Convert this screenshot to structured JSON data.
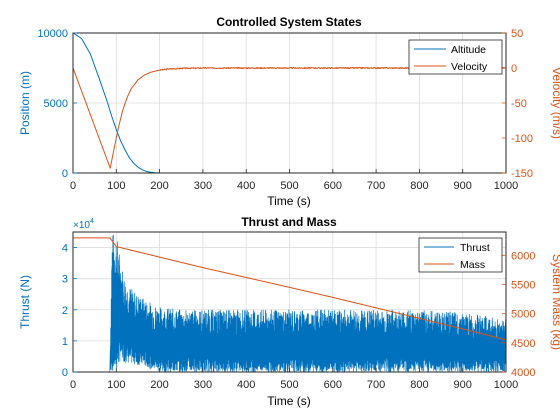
{
  "chart_data": [
    {
      "type": "line",
      "title": "Controlled System States",
      "xlabel": "Time (s)",
      "ylabel_left": "Position (m)",
      "ylabel_right": "Velocity (m/s)",
      "xlim": [
        0,
        1000
      ],
      "ylim_left": [
        0,
        10000
      ],
      "ylim_right": [
        -150,
        50
      ],
      "xticks": [
        "0",
        "100",
        "200",
        "300",
        "400",
        "500",
        "600",
        "700",
        "800",
        "900",
        "1000"
      ],
      "yticks_left": [
        "0",
        "5000",
        "10000"
      ],
      "yticks_right": [
        "-150",
        "-100",
        "-50",
        "0",
        "50"
      ],
      "grid": true,
      "legend_location": "top-right",
      "series": [
        {
          "name": "Altitude",
          "axis": "left",
          "color": "#0072BD",
          "x": [
            0,
            20,
            40,
            60,
            80,
            90,
            100,
            110,
            120,
            130,
            140,
            150,
            160,
            170,
            180,
            190,
            200,
            210
          ],
          "y": [
            10000,
            9600,
            8500,
            6800,
            5000,
            4000,
            3100,
            2300,
            1650,
            1100,
            700,
            420,
            230,
            110,
            50,
            20,
            5,
            0
          ]
        },
        {
          "name": "Velocity",
          "axis": "right",
          "color": "#D95319",
          "x": [
            0,
            86,
            95,
            105,
            115,
            125,
            135,
            150,
            165,
            180,
            200,
            220,
            250,
            300,
            400,
            500,
            600,
            700,
            800,
            900,
            1000
          ],
          "y": [
            0,
            -143,
            -115,
            -85,
            -60,
            -42,
            -29,
            -17,
            -10,
            -6,
            -3,
            -1.5,
            -0.5,
            0,
            0,
            0,
            0,
            0,
            0,
            0,
            0
          ]
        }
      ]
    },
    {
      "type": "line",
      "title": "Thrust and Mass",
      "xlabel": "Time (s)",
      "ylabel_left": "Thrust (N)",
      "ylabel_right": "System Mass (kg)",
      "left_exponent_base": "×10",
      "left_exponent_power": "4",
      "xlim": [
        0,
        1000
      ],
      "ylim_left": [
        0,
        45000
      ],
      "ylim_right": [
        4000,
        6400
      ],
      "xticks": [
        "0",
        "100",
        "200",
        "300",
        "400",
        "500",
        "600",
        "700",
        "800",
        "900",
        "1000"
      ],
      "yticks_left": [
        "0",
        "1",
        "2",
        "3",
        "4"
      ],
      "yticks_right": [
        "4000",
        "4500",
        "5000",
        "5500",
        "6000"
      ],
      "grid": true,
      "legend_location": "top-right",
      "series": [
        {
          "name": "Thrust",
          "axis": "left",
          "color": "#0072BD",
          "style": "rapidly oscillating (pulse-modulated)",
          "x": [
            0,
            85,
            90,
            100,
            110,
            120,
            140,
            160,
            200,
            250,
            300,
            400,
            500,
            600,
            700,
            800,
            900,
            1000
          ],
          "upper_envelope": [
            0,
            0,
            45000,
            45000,
            36000,
            30000,
            26000,
            24000,
            21000,
            20000,
            20000,
            20000,
            20000,
            20000,
            20000,
            20000,
            19000,
            17000
          ],
          "lower_envelope": [
            0,
            0,
            0,
            0,
            4000,
            3000,
            2500,
            2000,
            0,
            0,
            0,
            0,
            0,
            0,
            0,
            0,
            0,
            0
          ]
        },
        {
          "name": "Mass",
          "axis": "right",
          "color": "#D95319",
          "x": [
            0,
            85,
            100,
            200,
            300,
            400,
            500,
            600,
            700,
            800,
            900,
            1000
          ],
          "y": [
            6300,
            6300,
            6150,
            5970,
            5790,
            5620,
            5450,
            5280,
            5100,
            4920,
            4740,
            4550
          ]
        }
      ]
    }
  ]
}
